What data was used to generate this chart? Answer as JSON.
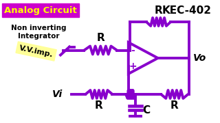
{
  "bg_color": "#ffffff",
  "purple": "#8800cc",
  "title_text": "Analog Circuit",
  "title_bg": "#cc00cc",
  "title_fg": "#ffff00",
  "kec_text": "KEC-402",
  "kec_color": "#000000",
  "label_noninv": "Non inverting\nIntegrator",
  "label_vvimp": "V.V.imp.",
  "label_vvimp_bg": "#ffff99",
  "label_vi": "Vi",
  "label_vo": "Vo",
  "label_r1": "R",
  "label_r2": "R",
  "label_r3": "R",
  "label_r4": "R",
  "label_c": "C"
}
